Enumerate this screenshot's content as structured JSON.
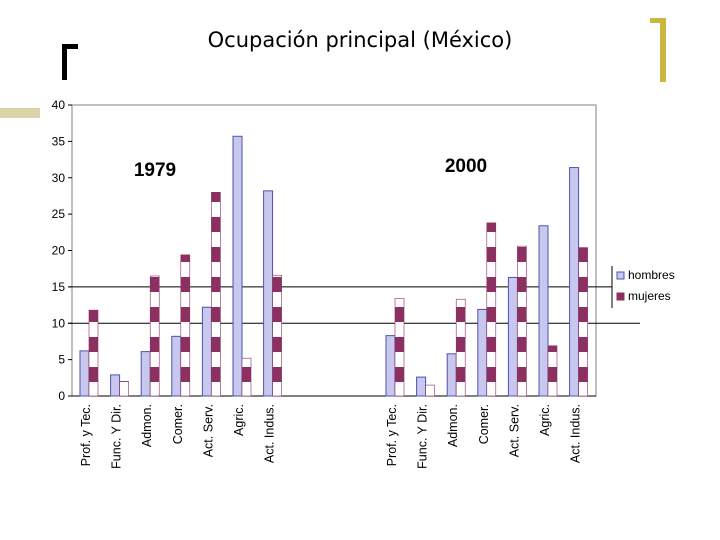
{
  "slide": {
    "title": "Ocupación principal (México)"
  },
  "colors": {
    "hombres": "#c8c8ee",
    "hombres_stroke": "#5050b0",
    "mujeres": "#8b3060",
    "gold_accent": "#c9b740",
    "sidebar": "#d8d3a8"
  },
  "chart_data": {
    "type": "bar",
    "yticks": [
      "0",
      "5",
      "10",
      "15",
      "20",
      "25",
      "30",
      "35",
      "40"
    ],
    "ylim": [
      0,
      40
    ],
    "group_labels": [
      "1979",
      "2000"
    ],
    "groups": [
      {
        "label": "1979",
        "categories": [
          "Prof. y Tec.",
          "Func. Y Dir.",
          "Admon.",
          "Comer.",
          "Act. Serv.",
          "Agric.",
          "Act. Indus."
        ],
        "series": [
          {
            "name": "hombres",
            "values": [
              6.2,
              2.9,
              6.1,
              8.2,
              12.2,
              35.7,
              28.2
            ]
          },
          {
            "name": "mujeres",
            "values": [
              11.8,
              2.0,
              16.5,
              19.4,
              28.0,
              5.2,
              16.6
            ]
          }
        ]
      },
      {
        "label": "2000",
        "categories": [
          "Prof. y Tec.",
          "Func. Y Dir.",
          "Admon.",
          "Comer.",
          "Act. Serv.",
          "Agric.",
          "Act. Indus."
        ],
        "series": [
          {
            "name": "hombres",
            "values": [
              8.3,
              2.6,
              5.8,
              11.9,
              16.3,
              23.4,
              31.4
            ]
          },
          {
            "name": "mujeres",
            "values": [
              13.4,
              1.5,
              13.3,
              23.8,
              20.6,
              6.9,
              20.4
            ]
          }
        ]
      }
    ],
    "legend": {
      "items": [
        "hombres",
        "mujeres"
      ],
      "position": "right"
    },
    "grid": "horizontal at 15 and 10"
  }
}
